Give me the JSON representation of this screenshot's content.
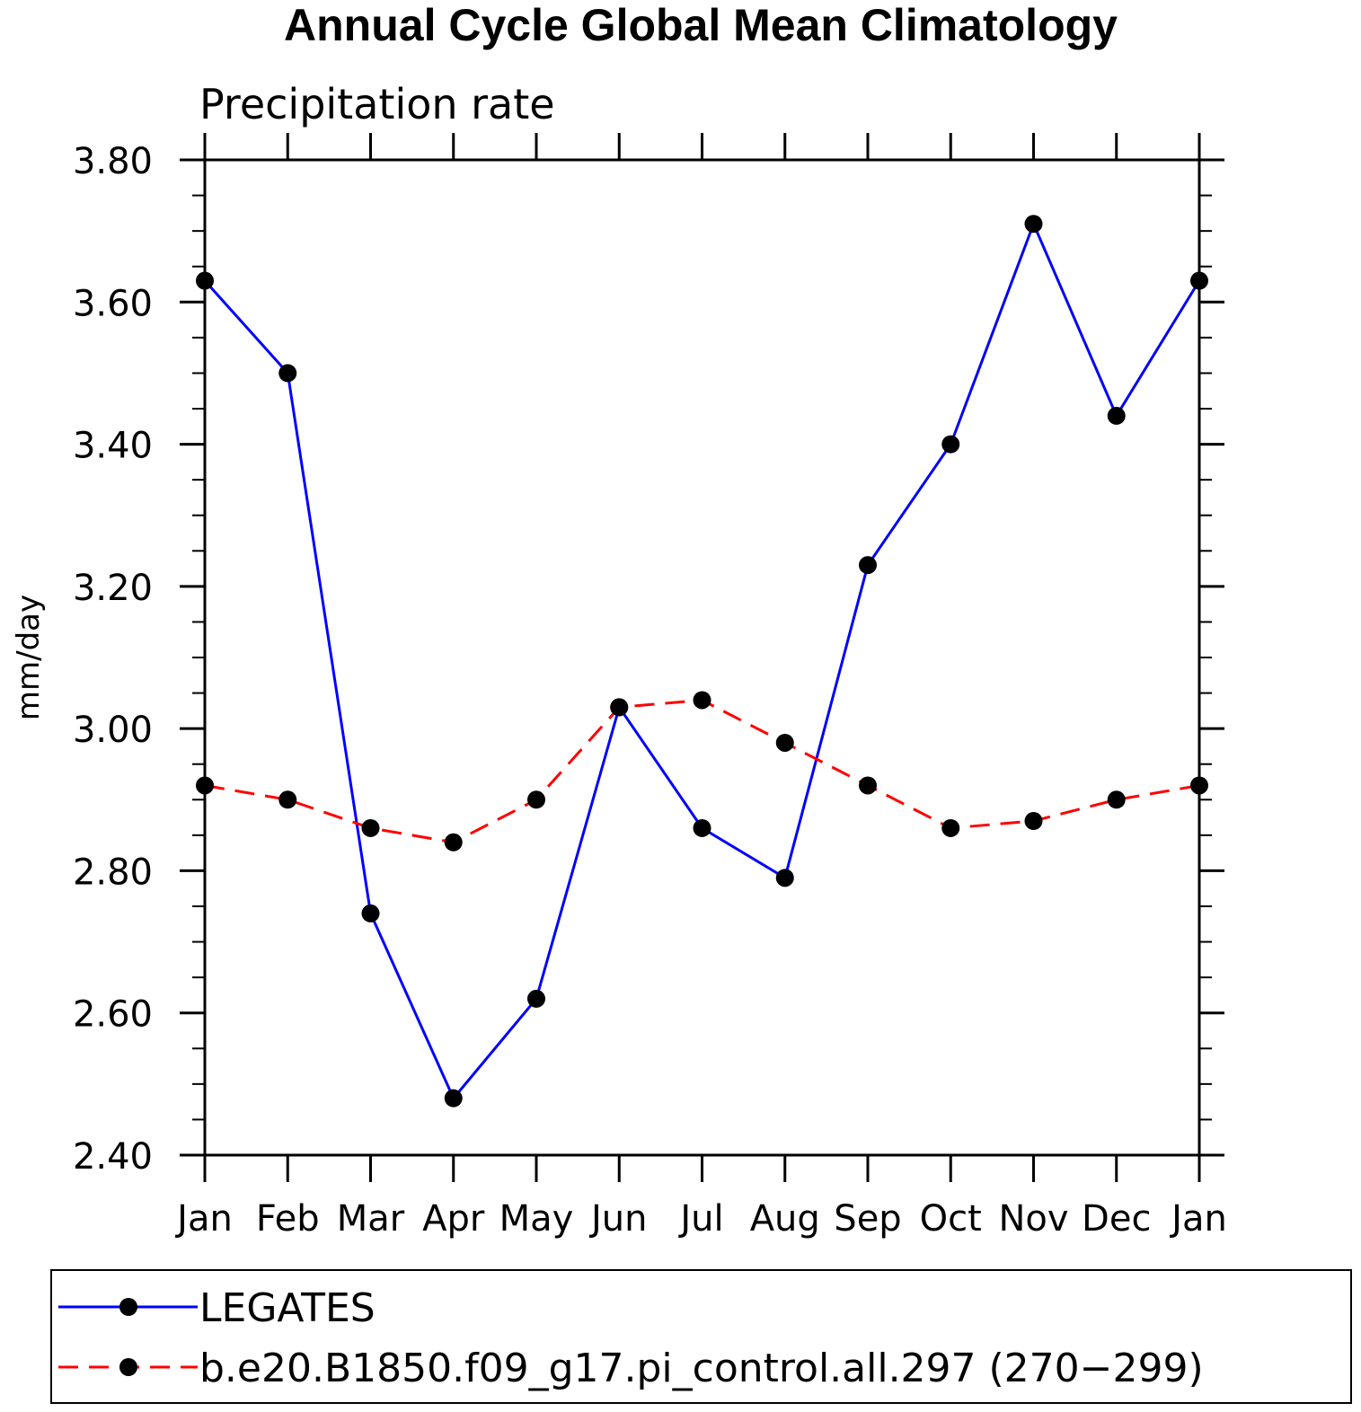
{
  "chart_data": {
    "type": "line",
    "title": "Annual Cycle Global Mean Climatology",
    "subtitle": "Precipitation rate",
    "xlabel": "",
    "ylabel": "mm/day",
    "categories": [
      "Jan",
      "Feb",
      "Mar",
      "Apr",
      "May",
      "Jun",
      "Jul",
      "Aug",
      "Sep",
      "Oct",
      "Nov",
      "Dec",
      "Jan"
    ],
    "ylim": [
      2.4,
      3.8
    ],
    "yticks": [
      "2.40",
      "2.60",
      "2.80",
      "3.00",
      "3.20",
      "3.40",
      "3.60",
      "3.80"
    ],
    "ytick_values": [
      2.4,
      2.6,
      2.8,
      3.0,
      3.2,
      3.4,
      3.6,
      3.8
    ],
    "series": [
      {
        "name": "LEGATES",
        "color": "#0000ff",
        "dash": "solid",
        "values": [
          3.63,
          3.5,
          2.74,
          2.48,
          2.62,
          3.03,
          2.86,
          2.79,
          3.23,
          3.4,
          3.71,
          3.44,
          3.63
        ]
      },
      {
        "name": "b.e20.B1850.f09_g17.pi_control.all.297 (270−299)",
        "color": "#ff0000",
        "dash": "dashed",
        "values": [
          2.92,
          2.9,
          2.86,
          2.84,
          2.9,
          3.03,
          3.04,
          2.98,
          2.92,
          2.86,
          2.87,
          2.9,
          2.92
        ]
      }
    ],
    "legend_position": "bottom"
  }
}
